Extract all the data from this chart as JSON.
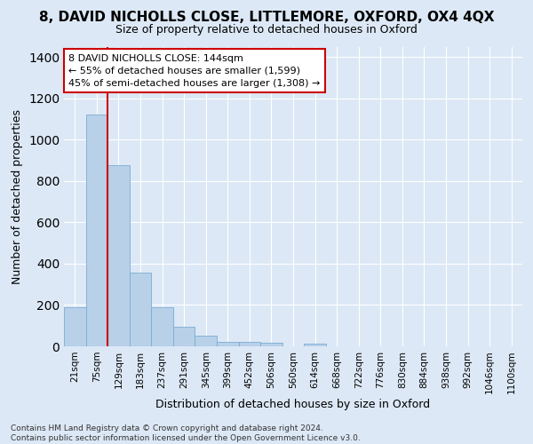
{
  "title": "8, DAVID NICHOLLS CLOSE, LITTLEMORE, OXFORD, OX4 4QX",
  "subtitle": "Size of property relative to detached houses in Oxford",
  "xlabel": "Distribution of detached houses by size in Oxford",
  "ylabel": "Number of detached properties",
  "categories": [
    "21sqm",
    "75sqm",
    "129sqm",
    "183sqm",
    "237sqm",
    "291sqm",
    "345sqm",
    "399sqm",
    "452sqm",
    "506sqm",
    "560sqm",
    "614sqm",
    "668sqm",
    "722sqm",
    "776sqm",
    "830sqm",
    "884sqm",
    "938sqm",
    "992sqm",
    "1046sqm",
    "1100sqm"
  ],
  "values": [
    190,
    1120,
    875,
    355,
    190,
    95,
    52,
    22,
    22,
    18,
    0,
    14,
    0,
    0,
    0,
    0,
    0,
    0,
    0,
    0,
    0
  ],
  "bar_color": "#b8d0e8",
  "bar_edge_color": "#7aadd4",
  "vline_color": "#cc0000",
  "vline_x_index": 2,
  "annotation_text": "8 DAVID NICHOLLS CLOSE: 144sqm\n← 55% of detached houses are smaller (1,599)\n45% of semi-detached houses are larger (1,308) →",
  "annotation_box_facecolor": "#ffffff",
  "annotation_box_edgecolor": "#cc0000",
  "footnote": "Contains HM Land Registry data © Crown copyright and database right 2024.\nContains public sector information licensed under the Open Government Licence v3.0.",
  "ylim": [
    0,
    1450
  ],
  "background_color": "#dce8f5",
  "grid_color": "#ffffff",
  "title_fontsize": 11,
  "subtitle_fontsize": 9,
  "ylabel_fontsize": 9,
  "xlabel_fontsize": 9,
  "tick_fontsize": 7.5,
  "annotation_fontsize": 8,
  "footnote_fontsize": 6.5
}
